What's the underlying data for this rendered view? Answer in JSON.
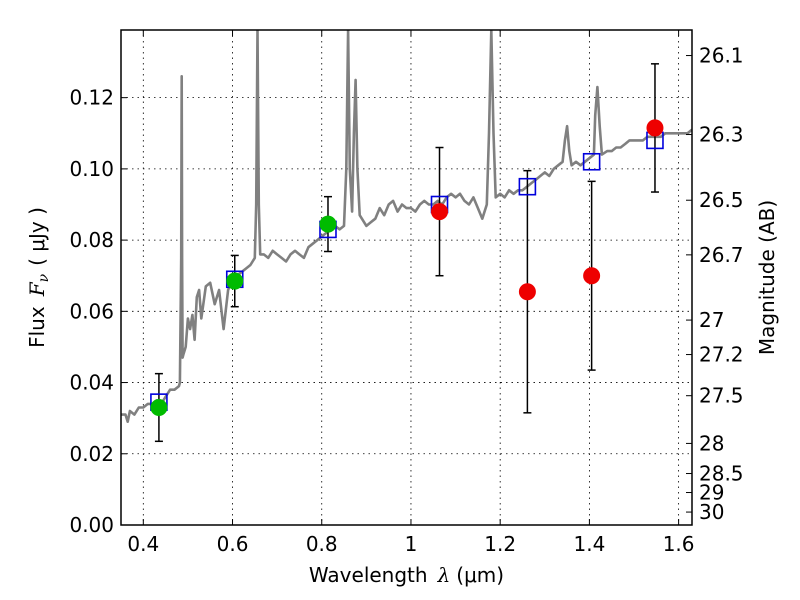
{
  "chart_data": {
    "type": "scatter",
    "xlabel_text": "Wavelength",
    "xlabel_symbol": "λ",
    "xlabel_unit": "(μm)",
    "ylabel_text": "Flux",
    "ylabel_symbol_main": "F",
    "ylabel_symbol_sub": "ν",
    "ylabel_unit": "( μJy )",
    "y2label": "Magnitude (AB)",
    "xlim": [
      0.35,
      1.63
    ],
    "ylim": [
      0.0,
      0.139
    ],
    "grid": true,
    "x_ticks": [
      {
        "value": 0.4,
        "label": "0.4"
      },
      {
        "value": 0.6,
        "label": "0.6"
      },
      {
        "value": 0.8,
        "label": "0.8"
      },
      {
        "value": 1.0,
        "label": "1"
      },
      {
        "value": 1.2,
        "label": "1.2"
      },
      {
        "value": 1.4,
        "label": "1.4"
      },
      {
        "value": 1.6,
        "label": "1.6"
      }
    ],
    "y_ticks": [
      {
        "value": 0.0,
        "label": "0.00"
      },
      {
        "value": 0.02,
        "label": "0.02"
      },
      {
        "value": 0.04,
        "label": "0.04"
      },
      {
        "value": 0.06,
        "label": "0.06"
      },
      {
        "value": 0.08,
        "label": "0.08"
      },
      {
        "value": 0.1,
        "label": "0.10"
      },
      {
        "value": 0.12,
        "label": "0.12"
      }
    ],
    "magnitude_ticks": [
      {
        "mag": 26.1,
        "label": "26.1"
      },
      {
        "mag": 26.3,
        "label": "26.3"
      },
      {
        "mag": 26.5,
        "label": "26.5"
      },
      {
        "mag": 26.7,
        "label": "26.7"
      },
      {
        "mag": 27.0,
        "label": "27"
      },
      {
        "mag": 27.2,
        "label": "27.2"
      },
      {
        "mag": 27.5,
        "label": "27.5"
      },
      {
        "mag": 28.0,
        "label": "28"
      },
      {
        "mag": 28.5,
        "label": "28.5"
      },
      {
        "mag": 29.0,
        "label": "29"
      },
      {
        "mag": 30.0,
        "label": "30"
      }
    ],
    "magnitude_zeropoint": 23.9,
    "spectrum": {
      "color": "#808080",
      "points": [
        [
          0.35,
          0.031
        ],
        [
          0.36,
          0.031
        ],
        [
          0.365,
          0.029
        ],
        [
          0.37,
          0.032
        ],
        [
          0.38,
          0.031
        ],
        [
          0.39,
          0.033
        ],
        [
          0.4,
          0.033
        ],
        [
          0.41,
          0.034
        ],
        [
          0.42,
          0.034
        ],
        [
          0.43,
          0.035
        ],
        [
          0.44,
          0.034
        ],
        [
          0.45,
          0.036
        ],
        [
          0.46,
          0.038
        ],
        [
          0.47,
          0.038
        ],
        [
          0.48,
          0.039
        ],
        [
          0.482,
          0.04
        ],
        [
          0.485,
          0.075
        ],
        [
          0.486,
          0.126
        ],
        [
          0.487,
          0.075
        ],
        [
          0.488,
          0.047
        ],
        [
          0.49,
          0.048
        ],
        [
          0.495,
          0.05
        ],
        [
          0.5,
          0.058
        ],
        [
          0.505,
          0.055
        ],
        [
          0.51,
          0.059
        ],
        [
          0.515,
          0.052
        ],
        [
          0.52,
          0.064
        ],
        [
          0.525,
          0.066
        ],
        [
          0.53,
          0.058
        ],
        [
          0.54,
          0.067
        ],
        [
          0.55,
          0.068
        ],
        [
          0.56,
          0.062
        ],
        [
          0.57,
          0.066
        ],
        [
          0.58,
          0.055
        ],
        [
          0.59,
          0.066
        ],
        [
          0.6,
          0.069
        ],
        [
          0.61,
          0.07
        ],
        [
          0.62,
          0.071
        ],
        [
          0.63,
          0.072
        ],
        [
          0.64,
          0.073
        ],
        [
          0.65,
          0.075
        ],
        [
          0.653,
          0.09
        ],
        [
          0.656,
          0.139
        ],
        [
          0.659,
          0.09
        ],
        [
          0.662,
          0.076
        ],
        [
          0.67,
          0.076
        ],
        [
          0.68,
          0.075
        ],
        [
          0.69,
          0.077
        ],
        [
          0.7,
          0.076
        ],
        [
          0.71,
          0.075
        ],
        [
          0.72,
          0.074
        ],
        [
          0.73,
          0.076
        ],
        [
          0.74,
          0.077
        ],
        [
          0.75,
          0.076
        ],
        [
          0.76,
          0.075
        ],
        [
          0.77,
          0.078
        ],
        [
          0.78,
          0.079
        ],
        [
          0.79,
          0.08
        ],
        [
          0.8,
          0.081
        ],
        [
          0.81,
          0.082
        ],
        [
          0.82,
          0.083
        ],
        [
          0.83,
          0.084
        ],
        [
          0.84,
          0.083
        ],
        [
          0.85,
          0.084
        ],
        [
          0.855,
          0.1
        ],
        [
          0.859,
          0.139
        ],
        [
          0.863,
          0.1
        ],
        [
          0.868,
          0.088
        ],
        [
          0.872,
          0.11
        ],
        [
          0.876,
          0.125
        ],
        [
          0.88,
          0.1
        ],
        [
          0.885,
          0.087
        ],
        [
          0.89,
          0.086
        ],
        [
          0.9,
          0.084
        ],
        [
          0.91,
          0.085
        ],
        [
          0.92,
          0.086
        ],
        [
          0.93,
          0.089
        ],
        [
          0.94,
          0.087
        ],
        [
          0.95,
          0.09
        ],
        [
          0.96,
          0.091
        ],
        [
          0.97,
          0.088
        ],
        [
          0.98,
          0.09
        ],
        [
          0.99,
          0.089
        ],
        [
          1.0,
          0.089
        ],
        [
          1.01,
          0.088
        ],
        [
          1.02,
          0.09
        ],
        [
          1.03,
          0.091
        ],
        [
          1.04,
          0.09
        ],
        [
          1.05,
          0.09
        ],
        [
          1.06,
          0.091
        ],
        [
          1.07,
          0.09
        ],
        [
          1.08,
          0.092
        ],
        [
          1.09,
          0.093
        ],
        [
          1.1,
          0.092
        ],
        [
          1.11,
          0.093
        ],
        [
          1.12,
          0.091
        ],
        [
          1.13,
          0.09
        ],
        [
          1.14,
          0.092
        ],
        [
          1.15,
          0.089
        ],
        [
          1.16,
          0.086
        ],
        [
          1.17,
          0.09
        ],
        [
          1.175,
          0.11
        ],
        [
          1.18,
          0.139
        ],
        [
          1.185,
          0.11
        ],
        [
          1.19,
          0.092
        ],
        [
          1.2,
          0.093
        ],
        [
          1.21,
          0.092
        ],
        [
          1.22,
          0.094
        ],
        [
          1.23,
          0.093
        ],
        [
          1.24,
          0.094
        ],
        [
          1.25,
          0.094
        ],
        [
          1.26,
          0.095
        ],
        [
          1.27,
          0.096
        ],
        [
          1.28,
          0.097
        ],
        [
          1.29,
          0.098
        ],
        [
          1.3,
          0.099
        ],
        [
          1.31,
          0.098
        ],
        [
          1.32,
          0.1
        ],
        [
          1.33,
          0.101
        ],
        [
          1.34,
          0.102
        ],
        [
          1.345,
          0.108
        ],
        [
          1.35,
          0.112
        ],
        [
          1.355,
          0.105
        ],
        [
          1.36,
          0.101
        ],
        [
          1.37,
          0.102
        ],
        [
          1.38,
          0.101
        ],
        [
          1.39,
          0.102
        ],
        [
          1.4,
          0.103
        ],
        [
          1.41,
          0.104
        ],
        [
          1.413,
          0.115
        ],
        [
          1.418,
          0.123
        ],
        [
          1.423,
          0.112
        ],
        [
          1.428,
          0.104
        ],
        [
          1.44,
          0.105
        ],
        [
          1.45,
          0.105
        ],
        [
          1.46,
          0.106
        ],
        [
          1.47,
          0.106
        ],
        [
          1.48,
          0.107
        ],
        [
          1.49,
          0.108
        ],
        [
          1.5,
          0.108
        ],
        [
          1.51,
          0.108
        ],
        [
          1.52,
          0.108
        ],
        [
          1.53,
          0.109
        ],
        [
          1.54,
          0.109
        ],
        [
          1.55,
          0.109
        ],
        [
          1.56,
          0.109
        ],
        [
          1.57,
          0.11
        ],
        [
          1.58,
          0.11
        ],
        [
          1.59,
          0.11
        ],
        [
          1.6,
          0.11
        ],
        [
          1.61,
          0.11
        ],
        [
          1.62,
          0.11
        ],
        [
          1.63,
          0.111
        ]
      ]
    },
    "model_squares": {
      "color": "#0000dd",
      "points": [
        {
          "x": 0.435,
          "y": 0.0345
        },
        {
          "x": 0.605,
          "y": 0.069
        },
        {
          "x": 0.814,
          "y": 0.083
        },
        {
          "x": 1.064,
          "y": 0.09
        },
        {
          "x": 1.261,
          "y": 0.095
        },
        {
          "x": 1.405,
          "y": 0.102
        },
        {
          "x": 1.547,
          "y": 0.108
        }
      ]
    },
    "detections": {
      "color": "#00bb00",
      "points": [
        {
          "x": 0.435,
          "y": 0.033,
          "err": 0.0095
        },
        {
          "x": 0.605,
          "y": 0.0685,
          "err": 0.0072
        },
        {
          "x": 0.814,
          "y": 0.0845,
          "err": 0.0077
        }
      ]
    },
    "low_significance": {
      "color": "#ee0000",
      "points": [
        {
          "x": 1.064,
          "y": 0.088,
          "err": 0.018
        },
        {
          "x": 1.261,
          "y": 0.0655,
          "err": 0.034
        },
        {
          "x": 1.405,
          "y": 0.07,
          "err": 0.0265
        },
        {
          "x": 1.547,
          "y": 0.1115,
          "err": 0.018
        }
      ]
    }
  }
}
